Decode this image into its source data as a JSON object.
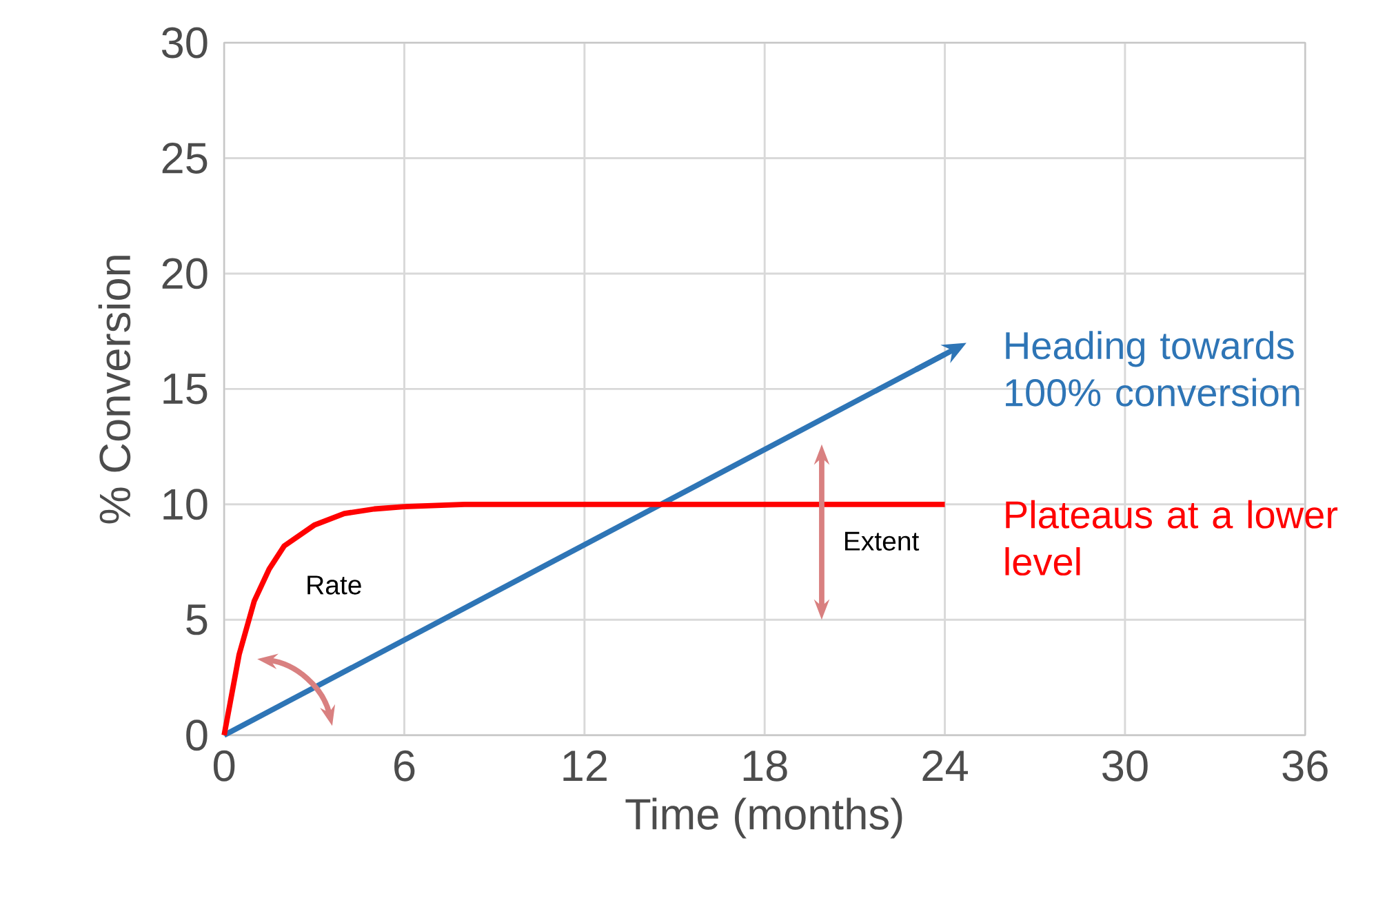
{
  "chart_data": {
    "type": "line",
    "xlabel": "Time (months)",
    "ylabel": "% Conversion",
    "xlim": [
      0,
      36
    ],
    "ylim": [
      0,
      30
    ],
    "xticks": [
      0,
      6,
      12,
      18,
      24,
      30,
      36
    ],
    "yticks": [
      0,
      5,
      10,
      15,
      20,
      25,
      30
    ],
    "grid": true,
    "series": [
      {
        "name": "Heading towards 100% conversion",
        "color": "#2e75b6",
        "x": [
          0,
          24
        ],
        "values": [
          0,
          16.5
        ]
      },
      {
        "name": "Plateaus at a lower level",
        "color": "#ff0000",
        "x": [
          0,
          0.5,
          1,
          1.5,
          2,
          3,
          4,
          5,
          6,
          8,
          12,
          24
        ],
        "values": [
          0,
          3.5,
          5.8,
          7.2,
          8.2,
          9.1,
          9.6,
          9.8,
          9.9,
          10,
          10,
          10
        ]
      }
    ],
    "annotations": [
      "Rate",
      "Extent"
    ]
  }
}
